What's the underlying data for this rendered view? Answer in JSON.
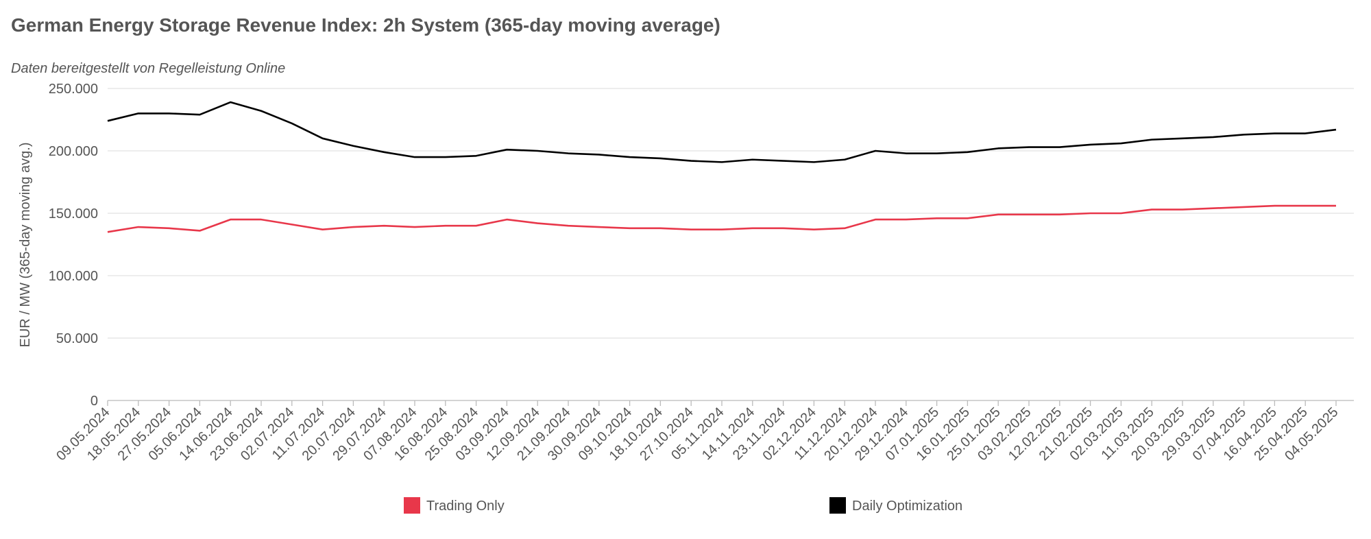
{
  "chart_data": {
    "type": "line",
    "title": "German Energy Storage Revenue Index: 2h System (365-day moving average)",
    "subtitle": "Daten bereitgestellt von Regelleistung Online",
    "y_label": "EUR / MW (365-day moving avg.)",
    "categories": [
      "09.05.2024",
      "18.05.2024",
      "27.05.2024",
      "05.06.2024",
      "14.06.2024",
      "23.06.2024",
      "02.07.2024",
      "11.07.2024",
      "20.07.2024",
      "29.07.2024",
      "07.08.2024",
      "16.08.2024",
      "25.08.2024",
      "03.09.2024",
      "12.09.2024",
      "21.09.2024",
      "30.09.2024",
      "09.10.2024",
      "18.10.2024",
      "27.10.2024",
      "05.11.2024",
      "14.11.2024",
      "23.11.2024",
      "02.12.2024",
      "11.12.2024",
      "20.12.2024",
      "29.12.2024",
      "07.01.2025",
      "16.01.2025",
      "25.01.2025",
      "03.02.2025",
      "12.02.2025",
      "21.02.2025",
      "02.03.2025",
      "11.03.2025",
      "20.03.2025",
      "29.03.2025",
      "07.04.2025",
      "16.04.2025",
      "25.04.2025",
      "04.05.2025"
    ],
    "series": [
      {
        "name": "Trading Only",
        "color": "#e8374a",
        "values": [
          135000,
          139000,
          138000,
          136000,
          145000,
          145000,
          141000,
          137000,
          139000,
          140000,
          139000,
          140000,
          140000,
          145000,
          142000,
          140000,
          139000,
          138000,
          138000,
          137000,
          137000,
          138000,
          138000,
          137000,
          138000,
          145000,
          145000,
          146000,
          146000,
          149000,
          149000,
          149000,
          150000,
          150000,
          153000,
          153000,
          154000,
          155000,
          156000,
          156000,
          156000
        ]
      },
      {
        "name": "Daily Optimization",
        "color": "#000000",
        "values": [
          224000,
          230000,
          230000,
          229000,
          239000,
          232000,
          222000,
          210000,
          204000,
          199000,
          195000,
          195000,
          196000,
          201000,
          200000,
          198000,
          197000,
          195000,
          194000,
          192000,
          191000,
          193000,
          192000,
          191000,
          193000,
          200000,
          198000,
          198000,
          199000,
          202000,
          203000,
          203000,
          205000,
          206000,
          209000,
          210000,
          211000,
          213000,
          214000,
          214000,
          217000
        ]
      }
    ],
    "ylim": [
      0,
      250000
    ],
    "yticks": [
      0,
      {
        "value": 50000,
        "label": "50.000"
      },
      {
        "value": 100000,
        "label": "100.000"
      },
      {
        "value": 150000,
        "label": "150.000"
      },
      {
        "value": 200000,
        "label": "200.000"
      },
      {
        "value": 250000,
        "label": "250.000"
      }
    ],
    "grid": true,
    "legend": "bottom"
  }
}
